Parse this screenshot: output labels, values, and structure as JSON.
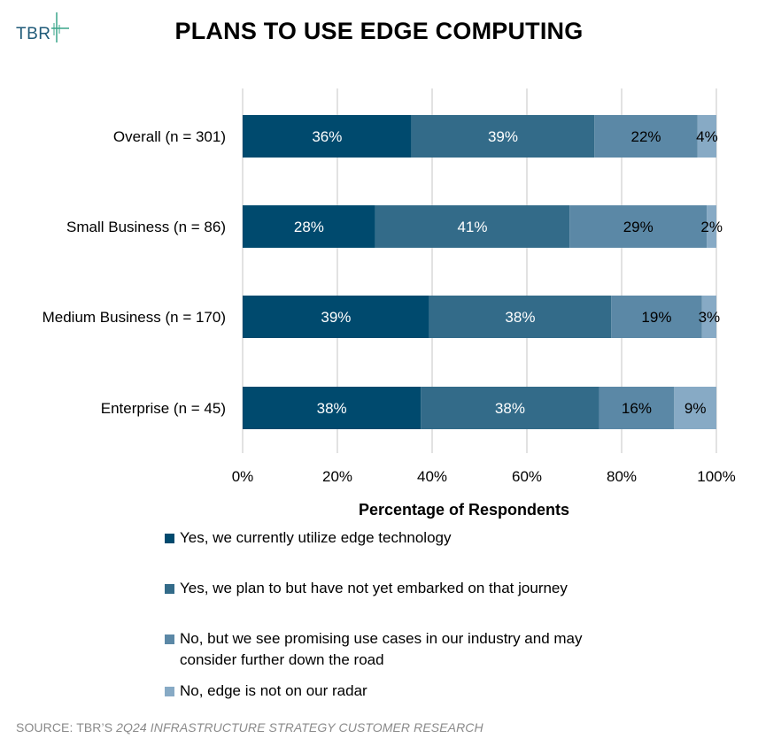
{
  "brand": {
    "logo_text": "TBR"
  },
  "title": "PLANS TO USE EDGE COMPUTING",
  "source": {
    "prefix": "SOURCE: TBR’S ",
    "italic": "2Q24 INFRASTRUCTURE STRATEGY CUSTOMER RESEARCH"
  },
  "colors": {
    "series": [
      "#004a6e",
      "#336b89",
      "#5b88a6",
      "#87aac5"
    ],
    "gridline": "#d9d9d9",
    "label_light": "#ffffff",
    "label_dark": "#000000"
  },
  "chart_data": {
    "type": "bar",
    "orientation": "horizontal",
    "stacked": true,
    "title": "PLANS TO USE EDGE COMPUTING",
    "xlabel": "Percentage of Respondents",
    "ylabel": "",
    "xlim": [
      0,
      100
    ],
    "x_ticks": [
      "0%",
      "20%",
      "40%",
      "60%",
      "80%",
      "100%"
    ],
    "grid": true,
    "legend_position": "bottom",
    "categories": [
      "Overall (n = 301)",
      "Small Business (n = 86)",
      "Medium Business (n = 170)",
      "Enterprise (n = 45)"
    ],
    "series": [
      {
        "name": "Yes, we currently utilize edge technology",
        "values": [
          36,
          28,
          39,
          38
        ]
      },
      {
        "name": "Yes, we plan to but have not yet embarked on that journey",
        "values": [
          39,
          41,
          38,
          38
        ]
      },
      {
        "name": "No, but we see promising use cases in our industry and may consider further down the road",
        "values": [
          22,
          29,
          19,
          16
        ]
      },
      {
        "name": "No, edge is not on our radar",
        "values": [
          4,
          2,
          3,
          9
        ]
      }
    ],
    "data_labels": [
      [
        "36%",
        "39%",
        "22%",
        "4%"
      ],
      [
        "28%",
        "41%",
        "29%",
        "2%"
      ],
      [
        "39%",
        "38%",
        "19%",
        "3%"
      ],
      [
        "38%",
        "38%",
        "16%",
        "9%"
      ]
    ]
  },
  "legend": {
    "items": [
      {
        "lines": [
          "Yes, we currently utilize edge technology"
        ]
      },
      {
        "lines": [
          "Yes, we plan to but have not yet embarked on that journey"
        ]
      },
      {
        "lines": [
          "No, but we see promising use cases in our industry and may",
          "consider further down the road"
        ]
      },
      {
        "lines": [
          "No, edge is not on our radar"
        ]
      }
    ]
  }
}
